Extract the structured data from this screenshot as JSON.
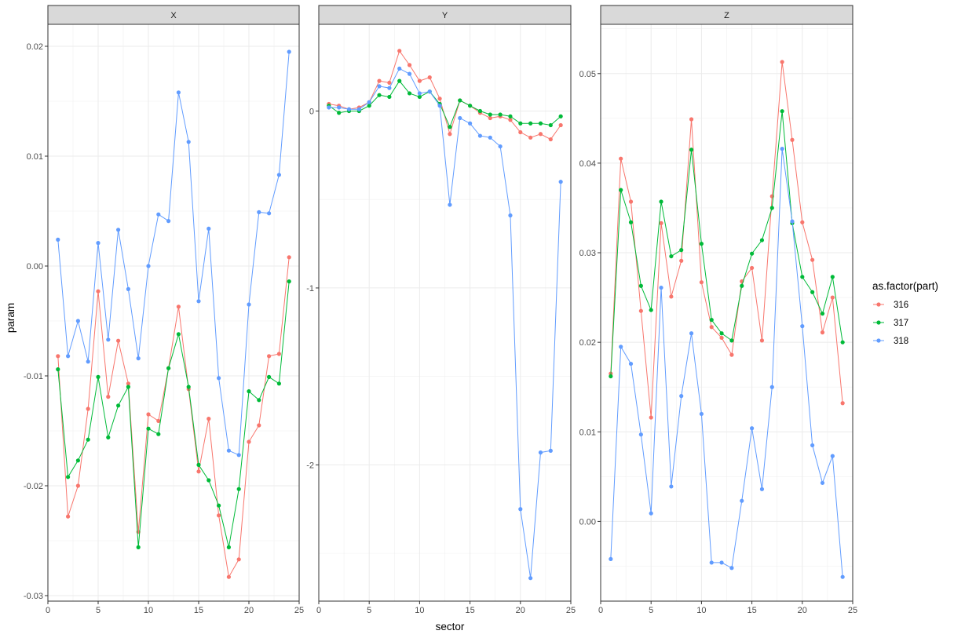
{
  "chart_data": {
    "type": "line",
    "xlabel": "sector",
    "ylabel": "param",
    "legend": {
      "title": "as.factor(part)",
      "position": "right"
    },
    "grid": true,
    "colors": {
      "316": "#F8766D",
      "317": "#00BA38",
      "318": "#619CFF"
    },
    "x": [
      1,
      2,
      3,
      4,
      5,
      6,
      7,
      8,
      9,
      10,
      11,
      12,
      13,
      14,
      15,
      16,
      17,
      18,
      19,
      20,
      21,
      22,
      23,
      24
    ],
    "panels": [
      {
        "facet": "X",
        "xlim": [
          0,
          25
        ],
        "ylim": [
          -0.0305,
          0.022
        ],
        "xticks": [
          0,
          5,
          10,
          15,
          20,
          25
        ],
        "xtick_labels": [
          "0",
          "5",
          "10",
          "15",
          "20",
          "25"
        ],
        "yticks": [
          -0.03,
          -0.02,
          -0.01,
          0.0,
          0.01,
          0.02
        ],
        "ytick_labels": [
          "-0.03",
          "-0.02",
          "-0.01",
          "0.00",
          "0.01",
          "0.02"
        ],
        "series": [
          {
            "name": "316",
            "values": [
              -0.0082,
              -0.0228,
              -0.02,
              -0.013,
              -0.0023,
              -0.0119,
              -0.0068,
              -0.0107,
              -0.0242,
              -0.0135,
              -0.0141,
              -0.0093,
              -0.0037,
              -0.0112,
              -0.0187,
              -0.0139,
              -0.0227,
              -0.0283,
              -0.0267,
              -0.016,
              -0.0145,
              -0.0082,
              -0.008,
              0.0008
            ]
          },
          {
            "name": "317",
            "values": [
              -0.0094,
              -0.0192,
              -0.0177,
              -0.0158,
              -0.0101,
              -0.0156,
              -0.0127,
              -0.011,
              -0.0256,
              -0.0148,
              -0.0153,
              -0.0093,
              -0.0062,
              -0.011,
              -0.0181,
              -0.0195,
              -0.0218,
              -0.0256,
              -0.0203,
              -0.0114,
              -0.0122,
              -0.0101,
              -0.0107,
              -0.0014
            ]
          },
          {
            "name": "318",
            "values": [
              0.0024,
              -0.0082,
              -0.005,
              -0.0087,
              0.0021,
              -0.0067,
              0.0033,
              -0.0021,
              -0.0084,
              0.0,
              0.0047,
              0.0041,
              0.0158,
              0.0113,
              -0.0032,
              0.0034,
              -0.0102,
              -0.0168,
              -0.0172,
              -0.0035,
              0.0049,
              0.0048,
              0.0083,
              0.0195
            ]
          }
        ]
      },
      {
        "facet": "Y",
        "xlim": [
          0,
          25
        ],
        "ylim": [
          -2.77,
          0.49
        ],
        "xticks": [
          0,
          5,
          10,
          15,
          20,
          25
        ],
        "xtick_labels": [
          "0",
          "5",
          "10",
          "15",
          "20",
          "25"
        ],
        "yticks": [
          -2,
          -1,
          0
        ],
        "ytick_labels": [
          "-2",
          "-1",
          "0"
        ],
        "series": [
          {
            "name": "316",
            "values": [
              0.04,
              0.03,
              0.01,
              0.02,
              0.05,
              0.17,
              0.16,
              0.34,
              0.26,
              0.17,
              0.19,
              0.07,
              -0.13,
              0.06,
              0.03,
              -0.01,
              -0.04,
              -0.03,
              -0.05,
              -0.12,
              -0.15,
              -0.13,
              -0.16,
              -0.08
            ]
          },
          {
            "name": "317",
            "values": [
              0.03,
              -0.01,
              0.0,
              0.0,
              0.03,
              0.09,
              0.08,
              0.17,
              0.1,
              0.08,
              0.11,
              0.04,
              -0.09,
              0.06,
              0.03,
              0.0,
              -0.02,
              -0.02,
              -0.03,
              -0.07,
              -0.07,
              -0.07,
              -0.08,
              -0.03
            ]
          },
          {
            "name": "318",
            "values": [
              0.02,
              0.02,
              0.01,
              0.01,
              0.05,
              0.14,
              0.13,
              0.24,
              0.21,
              0.1,
              0.11,
              0.03,
              -0.53,
              -0.04,
              -0.07,
              -0.14,
              -0.15,
              -0.2,
              -0.59,
              -2.25,
              -2.64,
              -1.93,
              -1.92,
              -0.4
            ]
          }
        ]
      },
      {
        "facet": "Z",
        "xlim": [
          0,
          25
        ],
        "ylim": [
          -0.0089,
          0.0555
        ],
        "xticks": [
          0,
          5,
          10,
          15,
          20,
          25
        ],
        "xtick_labels": [
          "0",
          "5",
          "10",
          "15",
          "20",
          "25"
        ],
        "yticks": [
          0.0,
          0.01,
          0.02,
          0.03,
          0.04,
          0.05
        ],
        "ytick_labels": [
          "0.00",
          "0.01",
          "0.02",
          "0.03",
          "0.04",
          "0.05"
        ],
        "series": [
          {
            "name": "316",
            "values": [
              0.0165,
              0.0405,
              0.0357,
              0.0235,
              0.0116,
              0.0333,
              0.0251,
              0.0291,
              0.0449,
              0.0267,
              0.0217,
              0.0205,
              0.0186,
              0.0268,
              0.0283,
              0.0202,
              0.0363,
              0.0513,
              0.0426,
              0.0334,
              0.0292,
              0.0211,
              0.025,
              0.0132
            ]
          },
          {
            "name": "317",
            "values": [
              0.0162,
              0.037,
              0.0334,
              0.0263,
              0.0236,
              0.0357,
              0.0296,
              0.0303,
              0.0415,
              0.031,
              0.0225,
              0.021,
              0.0202,
              0.0263,
              0.0299,
              0.0314,
              0.035,
              0.0458,
              0.0333,
              0.0273,
              0.0256,
              0.0232,
              0.0273,
              0.02
            ]
          },
          {
            "name": "318",
            "values": [
              -0.0042,
              0.0195,
              0.0176,
              0.0097,
              0.0009,
              0.0261,
              0.0039,
              0.014,
              0.021,
              0.012,
              -0.0046,
              -0.0046,
              -0.0052,
              0.0023,
              0.0104,
              0.0036,
              0.015,
              0.0416,
              0.0335,
              0.0218,
              0.0085,
              0.0043,
              0.0073,
              -0.0062
            ]
          }
        ]
      }
    ]
  }
}
